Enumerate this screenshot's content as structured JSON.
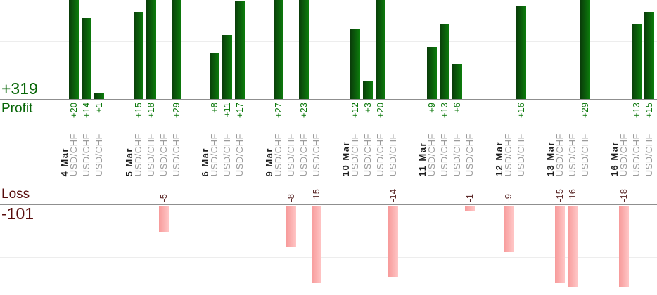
{
  "chart_data": {
    "type": "bar",
    "orientation": "vertical",
    "description_note": "Per-trade profit (green, up) and loss (pink, down) bars grouped by date",
    "profit": {
      "axis_label": "Profit",
      "total_label": "+319",
      "total": 319
    },
    "loss": {
      "axis_label": "Loss",
      "total_label": "-101",
      "total": -101
    },
    "grid": {
      "profit_gridline_value": 10,
      "loss_gridline_value": -10,
      "grid_visible": true
    },
    "groups": [
      {
        "date": "4 Mar",
        "trades": [
          {
            "symbol": "USD/CHF",
            "value": 20,
            "label": "+20"
          },
          {
            "symbol": "USD/CHF",
            "value": 14,
            "label": "+14"
          },
          {
            "symbol": "USD/CHF",
            "value": 1,
            "label": "+1"
          }
        ]
      },
      {
        "date": "5 Mar",
        "trades": [
          {
            "symbol": "USD/CHF",
            "value": 15,
            "label": "+15"
          },
          {
            "symbol": "USD/CHF",
            "value": 18,
            "label": "+18"
          },
          {
            "symbol": "USD/CHF",
            "value": -5,
            "label": "-5"
          },
          {
            "symbol": "USD/CHF",
            "value": 29,
            "label": "+29"
          }
        ]
      },
      {
        "date": "6 Mar",
        "trades": [
          {
            "symbol": "USD/CHF",
            "value": 8,
            "label": "+8"
          },
          {
            "symbol": "USD/CHF",
            "value": 11,
            "label": "+11"
          },
          {
            "symbol": "USD/CHF",
            "value": 17,
            "label": "+17"
          }
        ]
      },
      {
        "date": "9 Mar",
        "trades": [
          {
            "symbol": "USD/CHF",
            "value": 27,
            "label": "+27"
          },
          {
            "symbol": "USD/CHF",
            "value": -8,
            "label": "-8"
          },
          {
            "symbol": "USD/CHF",
            "value": 23,
            "label": "+23"
          },
          {
            "symbol": "USD/CHF",
            "value": -15,
            "label": "-15"
          }
        ]
      },
      {
        "date": "10 Mar",
        "trades": [
          {
            "symbol": "USD/CHF",
            "value": 12,
            "label": "+12"
          },
          {
            "symbol": "USD/CHF",
            "value": 3,
            "label": "+3"
          },
          {
            "symbol": "USD/CHF",
            "value": 20,
            "label": "+20"
          },
          {
            "symbol": "USD/CHF",
            "value": -14,
            "label": "-14"
          }
        ]
      },
      {
        "date": "11 Mar",
        "trades": [
          {
            "symbol": "USD/CHF",
            "value": 9,
            "label": "+9"
          },
          {
            "symbol": "USD/CHF",
            "value": 13,
            "label": "+13"
          },
          {
            "symbol": "USD/CHF",
            "value": 6,
            "label": "+6"
          },
          {
            "symbol": "USD/CHF",
            "value": -1,
            "label": "-1"
          }
        ]
      },
      {
        "date": "12 Mar",
        "trades": [
          {
            "symbol": "USD/CHF",
            "value": -9,
            "label": "-9"
          },
          {
            "symbol": "USD/CHF",
            "value": 16,
            "label": "+16"
          }
        ]
      },
      {
        "date": "13 Mar",
        "trades": [
          {
            "symbol": "USD/CHF",
            "value": -15,
            "label": "-15"
          },
          {
            "symbol": "USD/CHF",
            "value": -16,
            "label": "-16"
          },
          {
            "symbol": "USD/CHF",
            "value": 29,
            "label": "+29"
          }
        ]
      },
      {
        "date": "16 Mar",
        "trades": [
          {
            "symbol": "USD/CHF",
            "value": -18,
            "label": "-18"
          },
          {
            "symbol": "USD/CHF",
            "value": 13,
            "label": "+13"
          },
          {
            "symbol": "USD/CHF",
            "value": 15,
            "label": "+15"
          }
        ]
      }
    ]
  },
  "colors": {
    "profit_bar_dark": "#0a3c0a",
    "profit_bar_bright": "#0c7d0c",
    "loss_bar_dark": "#f79a9a",
    "loss_bar_light": "#ffc6c6",
    "profit_text": "#076607",
    "profit_value_text": "#077607",
    "loss_text": "#570b0b",
    "loss_value_text": "#5c2929",
    "date_text": "#1f1f1f",
    "symbol_text": "#9c9c9c",
    "axis_line": "#8f8f8f",
    "grid_line": "#ededed"
  }
}
